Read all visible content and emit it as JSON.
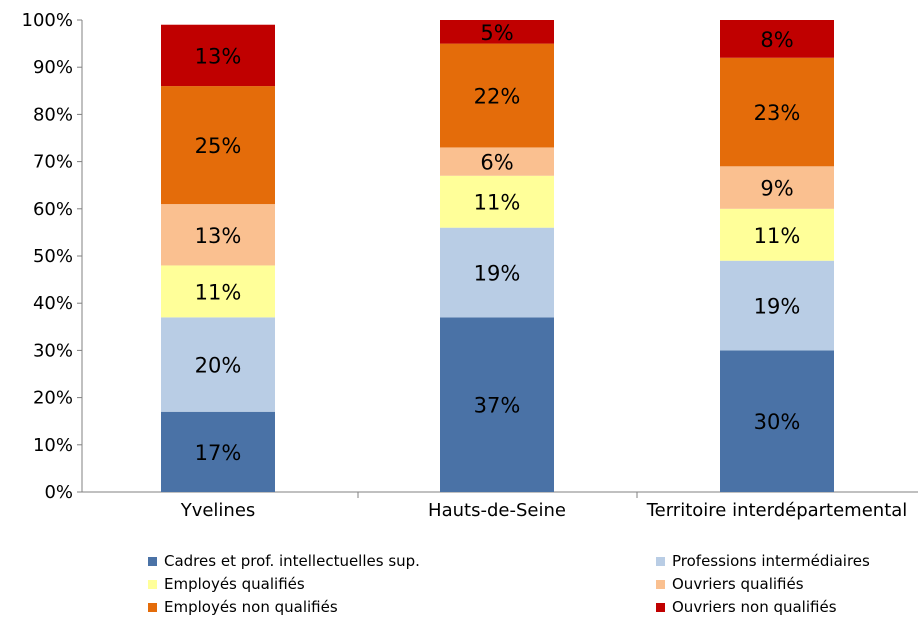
{
  "chart_data": {
    "type": "bar",
    "stacked": true,
    "orientation": "rotated-180",
    "categories": [
      "Yvelines",
      "Hauts-de-Seine",
      "Territoire interdépartemental"
    ],
    "series": [
      {
        "name": "Cadres et prof. intellectuelles sup.",
        "color": "#4a72a6",
        "values": [
          17,
          37,
          30
        ],
        "labels": [
          "17%",
          "37%",
          "30%"
        ]
      },
      {
        "name": "Professions intermédiaires",
        "color": "#b9cde5",
        "values": [
          20,
          19,
          19
        ],
        "labels": [
          "20%",
          "19%",
          "19%"
        ]
      },
      {
        "name": "Employés qualifiés",
        "color": "#ffff99",
        "values": [
          11,
          11,
          11
        ],
        "labels": [
          "11%",
          "11%",
          "11%"
        ]
      },
      {
        "name": "Ouvriers qualifiés",
        "color": "#fac090",
        "values": [
          13,
          6,
          9
        ],
        "labels": [
          "13%",
          "6%",
          "9%"
        ]
      },
      {
        "name": "Employés non qualifiés",
        "color": "#e46c0a",
        "values": [
          25,
          22,
          23
        ],
        "labels": [
          "25%",
          "22%",
          "23%"
        ]
      },
      {
        "name": "Ouvriers non qualifiés",
        "color": "#c00000",
        "values": [
          13,
          5,
          8
        ],
        "labels": [
          "13%",
          "5%",
          "8%"
        ]
      }
    ],
    "y_ticks": [
      "0%",
      "10%",
      "20%",
      "30%",
      "40%",
      "50%",
      "60%",
      "70%",
      "80%",
      "90%",
      "100%"
    ],
    "ylim": [
      0,
      100
    ],
    "grid": false,
    "legend_position": "bottom",
    "title": "",
    "xlabel": "",
    "ylabel": ""
  }
}
